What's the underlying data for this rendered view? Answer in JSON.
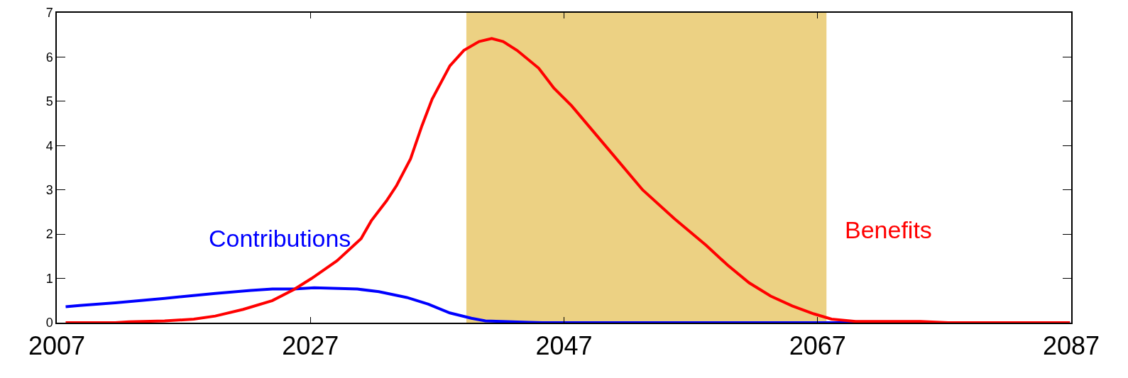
{
  "chart_data": {
    "type": "line",
    "xlim": [
      2007,
      2087
    ],
    "xticks": [
      2007,
      2027,
      2047,
      2067,
      2087
    ],
    "ylim": [
      0,
      7
    ],
    "yticks": [
      0,
      1,
      2,
      3,
      4,
      5,
      6,
      7
    ],
    "grid": false,
    "legend": false,
    "marker": "none",
    "line_style": "solid",
    "bands": [
      {
        "axis": "x",
        "from": 2039.3,
        "to": 2067.7,
        "color": "#e6c25a"
      }
    ],
    "series": [
      {
        "name": "Contributions",
        "color": "#0000ff",
        "x": [
          2007.7,
          2008.8,
          2011.6,
          2015.5,
          2019.5,
          2022.3,
          2024.0,
          2025.7,
          2027.3,
          2030.7,
          2032.4,
          2034.6,
          2036.3,
          2038.0,
          2039.7,
          2040.8,
          2044.2,
          2045.3,
          2086.9
        ],
        "values": [
          0.36,
          0.39,
          0.45,
          0.55,
          0.66,
          0.73,
          0.76,
          0.76,
          0.79,
          0.76,
          0.7,
          0.57,
          0.42,
          0.22,
          0.1,
          0.04,
          0.01,
          0,
          0
        ]
      },
      {
        "name": "Benefits",
        "color": "#ff0000",
        "x": [
          2007.7,
          2011.6,
          2012.7,
          2015.5,
          2017.8,
          2019.5,
          2021.7,
          2024.0,
          2025.7,
          2027.1,
          2029.1,
          2031.0,
          2031.8,
          2033.0,
          2033.8,
          2034.9,
          2035.8,
          2036.6,
          2038.0,
          2039.1,
          2040.3,
          2041.3,
          2042.2,
          2043.3,
          2045.0,
          2046.2,
          2047.6,
          2050.4,
          2053.2,
          2055.7,
          2058.2,
          2059.9,
          2061.6,
          2063.3,
          2065.0,
          2066.7,
          2068.1,
          2070.0,
          2075.1,
          2077.3,
          2086.9
        ],
        "values": [
          0,
          0,
          0.02,
          0.04,
          0.08,
          0.15,
          0.3,
          0.5,
          0.75,
          1.0,
          1.4,
          1.9,
          2.3,
          2.75,
          3.1,
          3.7,
          4.45,
          5.05,
          5.8,
          6.15,
          6.35,
          6.42,
          6.35,
          6.15,
          5.75,
          5.3,
          4.9,
          3.95,
          3.0,
          2.35,
          1.75,
          1.3,
          0.9,
          0.6,
          0.38,
          0.2,
          0.08,
          0.03,
          0.03,
          0,
          0
        ]
      }
    ]
  }
}
